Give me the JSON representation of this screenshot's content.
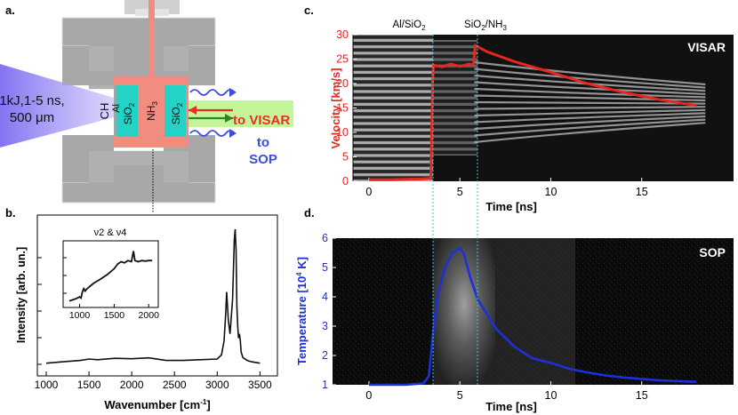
{
  "panels": {
    "a": "a.",
    "b": "b.",
    "c": "c.",
    "d": "d."
  },
  "schematic": {
    "laser_label_line1": "1kJ,1-5 ns,",
    "laser_label_line2": "500 μm",
    "layer_ch": "CH",
    "layer_al": "Al",
    "layer_sio2_left": "SiO",
    "layer_nh3": "NH",
    "layer_sio2_right": "SiO",
    "to_visar": "to VISAR",
    "to_sop_line1": "to",
    "to_sop_line2": "SOP",
    "colors": {
      "gray": "#a8a8a8",
      "sample": "#f28b80",
      "window": "#22d3c6",
      "laser": "#7b6cf0",
      "visar": "#e83020",
      "sop": "#3a4ee0"
    }
  },
  "interface_labels": {
    "al_sio2": "Al/SiO",
    "sio2_nh3": "SiO"
  },
  "chart_data": [
    {
      "id": "raman",
      "type": "line",
      "xlabel": "Wavenumber [cm",
      "ylabel": "Intensity [arb. un.]",
      "xlim": [
        1000,
        3600
      ],
      "xticks": [
        1000,
        1500,
        2000,
        2500,
        3000,
        3500
      ],
      "x": [
        1000,
        1200,
        1400,
        1500,
        1600,
        1800,
        2000,
        2200,
        2400,
        2600,
        2800,
        3000,
        3050,
        3080,
        3100,
        3110,
        3130,
        3150,
        3180,
        3200,
        3210,
        3220,
        3230,
        3240,
        3250,
        3260,
        3270,
        3280,
        3300,
        3350,
        3400,
        3500
      ],
      "y": [
        0.04,
        0.05,
        0.06,
        0.07,
        0.065,
        0.075,
        0.072,
        0.078,
        0.06,
        0.06,
        0.065,
        0.07,
        0.1,
        0.2,
        0.4,
        0.55,
        0.35,
        0.25,
        0.5,
        0.92,
        1.0,
        0.85,
        0.45,
        0.3,
        0.22,
        0.25,
        0.2,
        0.12,
        0.08,
        0.06,
        0.05,
        0.04
      ],
      "inset": {
        "title": "ν2 & ν4",
        "xticks": [
          1000,
          1500,
          2000
        ],
        "xlim": [
          800,
          2100
        ],
        "x": [
          850,
          900,
          950,
          1000,
          1020,
          1040,
          1060,
          1080,
          1100,
          1200,
          1300,
          1400,
          1500,
          1550,
          1600,
          1650,
          1700,
          1750,
          1780,
          1800,
          1850,
          1900,
          1950,
          2000,
          2050
        ],
        "y": [
          0.05,
          0.07,
          0.09,
          0.12,
          0.1,
          0.2,
          0.26,
          0.22,
          0.25,
          0.35,
          0.42,
          0.5,
          0.6,
          0.68,
          0.72,
          0.7,
          0.74,
          0.72,
          0.9,
          0.74,
          0.72,
          0.74,
          0.73,
          0.74,
          0.74
        ]
      }
    },
    {
      "id": "visar",
      "type": "line",
      "label": "VISAR",
      "xlabel": "Time [ns]",
      "ylabel": "Velocity [km/s]",
      "xlim": [
        -2,
        20
      ],
      "ylim": [
        0,
        30
      ],
      "xticks": [
        0,
        5,
        10,
        15
      ],
      "yticks": [
        0,
        5,
        10,
        15,
        20,
        25,
        30
      ],
      "x": [
        0,
        1,
        2,
        3,
        3.4,
        3.5,
        3.55,
        4,
        4.5,
        5,
        5.5,
        5.75,
        5.8,
        5.85,
        6.5,
        8,
        10,
        12,
        14,
        16,
        18
      ],
      "y": [
        0.3,
        0.3,
        0.4,
        0.5,
        0.6,
        20,
        23.8,
        23.4,
        24,
        23.5,
        24,
        23.8,
        26,
        27.8,
        26.5,
        24.5,
        22.3,
        20,
        18.2,
        16.7,
        15.5
      ],
      "color": "#e8261e"
    },
    {
      "id": "sop",
      "type": "line",
      "label": "SOP",
      "xlabel": "Time [ns]",
      "ylabel": "Temperature [10",
      "ylabel_sup": "4",
      "ylabel_end": " K]",
      "xlim": [
        -2,
        20
      ],
      "ylim": [
        1,
        6
      ],
      "xticks": [
        0,
        5,
        10,
        15
      ],
      "yticks": [
        1,
        2,
        3,
        4,
        5,
        6
      ],
      "x": [
        0,
        1,
        2,
        3,
        3.3,
        3.5,
        3.8,
        4.2,
        4.6,
        5,
        5.2,
        5.6,
        6,
        6.5,
        7,
        8,
        9,
        10,
        11,
        12,
        13,
        14,
        16,
        18
      ],
      "y": [
        1.0,
        1.0,
        1.0,
        1.05,
        1.3,
        2.6,
        4.1,
        5.0,
        5.5,
        5.65,
        5.5,
        4.6,
        3.9,
        3.4,
        2.9,
        2.3,
        1.9,
        1.75,
        1.55,
        1.42,
        1.32,
        1.25,
        1.15,
        1.1
      ],
      "color": "#1d30d8"
    }
  ]
}
